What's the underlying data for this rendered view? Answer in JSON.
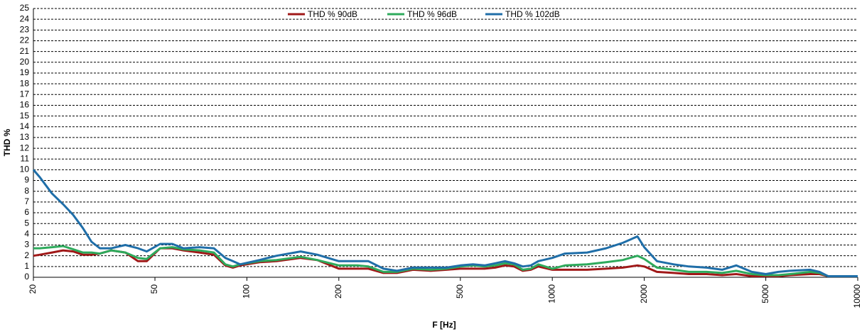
{
  "chart_data": {
    "type": "line",
    "xlabel": "F [Hz]",
    "ylabel": "THD %",
    "log_x": true,
    "grid": true,
    "legend": "top",
    "x": [
      20,
      21,
      23,
      25,
      27,
      29,
      31,
      33,
      36,
      40,
      44,
      47,
      52,
      57,
      62,
      70,
      78,
      85,
      90,
      95,
      110,
      125,
      150,
      170,
      200,
      230,
      250,
      280,
      310,
      350,
      400,
      450,
      500,
      550,
      600,
      650,
      700,
      750,
      800,
      850,
      900,
      1000,
      1100,
      1300,
      1500,
      1700,
      1900,
      2000,
      2200,
      2500,
      2800,
      3200,
      3600,
      4000,
      4500,
      5000,
      5500,
      6000,
      7000,
      7500,
      8000,
      10000
    ],
    "series": [
      {
        "name": "THD % 90dB",
        "color": "#a01818",
        "values": [
          2.0,
          2.1,
          2.3,
          2.5,
          2.4,
          2.1,
          2.1,
          2.2,
          2.5,
          2.3,
          1.5,
          1.5,
          2.7,
          2.7,
          2.5,
          2.3,
          2.1,
          1.1,
          0.9,
          1.1,
          1.4,
          1.5,
          1.8,
          1.6,
          0.8,
          0.8,
          0.8,
          0.4,
          0.4,
          0.7,
          0.6,
          0.7,
          0.8,
          0.8,
          0.8,
          0.9,
          1.1,
          1.0,
          0.6,
          0.7,
          1.0,
          0.7,
          0.7,
          0.7,
          0.8,
          0.9,
          1.1,
          1.0,
          0.5,
          0.4,
          0.3,
          0.3,
          0.2,
          0.3,
          0.1,
          0.1,
          0.1,
          0.2,
          0.3,
          0.3,
          0.1,
          0.1
        ]
      },
      {
        "name": "THD % 96dB",
        "color": "#2eaa5c",
        "values": [
          2.7,
          2.7,
          2.8,
          2.9,
          2.6,
          2.3,
          2.3,
          2.2,
          2.5,
          2.3,
          1.8,
          1.7,
          2.7,
          2.8,
          2.6,
          2.5,
          2.3,
          1.2,
          1.0,
          1.2,
          1.5,
          1.6,
          1.9,
          1.6,
          1.1,
          1.1,
          1.0,
          0.5,
          0.5,
          0.8,
          0.7,
          0.8,
          1.0,
          1.1,
          1.0,
          1.1,
          1.3,
          1.2,
          0.7,
          0.8,
          1.2,
          0.8,
          1.1,
          1.2,
          1.4,
          1.6,
          2.0,
          1.7,
          0.9,
          0.7,
          0.5,
          0.5,
          0.4,
          0.6,
          0.3,
          0.2,
          0.2,
          0.3,
          0.5,
          0.4,
          0.1,
          0.1
        ]
      },
      {
        "name": "THD % 102dB",
        "color": "#1f6ea8",
        "values": [
          10,
          9.3,
          7.8,
          6.8,
          5.8,
          4.6,
          3.3,
          2.7,
          2.7,
          3.0,
          2.7,
          2.4,
          3.1,
          3.1,
          2.7,
          2.8,
          2.7,
          1.8,
          1.5,
          1.2,
          1.6,
          2.0,
          2.4,
          2.1,
          1.5,
          1.5,
          1.5,
          0.8,
          0.6,
          0.9,
          0.9,
          0.9,
          1.1,
          1.2,
          1.1,
          1.3,
          1.5,
          1.3,
          1.0,
          1.1,
          1.5,
          1.8,
          2.2,
          2.3,
          2.7,
          3.2,
          3.8,
          2.8,
          1.5,
          1.2,
          1.0,
          0.9,
          0.7,
          1.1,
          0.5,
          0.3,
          0.5,
          0.6,
          0.7,
          0.5,
          0.1,
          0.1
        ]
      }
    ],
    "xlim": [
      20,
      10000
    ],
    "xticks": [
      20,
      50,
      100,
      200,
      500,
      1000,
      2000,
      5000,
      10000
    ],
    "ylim": [
      0,
      25
    ],
    "yticks": [
      0,
      1,
      2,
      3,
      4,
      5,
      6,
      7,
      8,
      9,
      10,
      11,
      12,
      13,
      14,
      15,
      16,
      17,
      18,
      19,
      20,
      21,
      22,
      23,
      24,
      25
    ]
  }
}
